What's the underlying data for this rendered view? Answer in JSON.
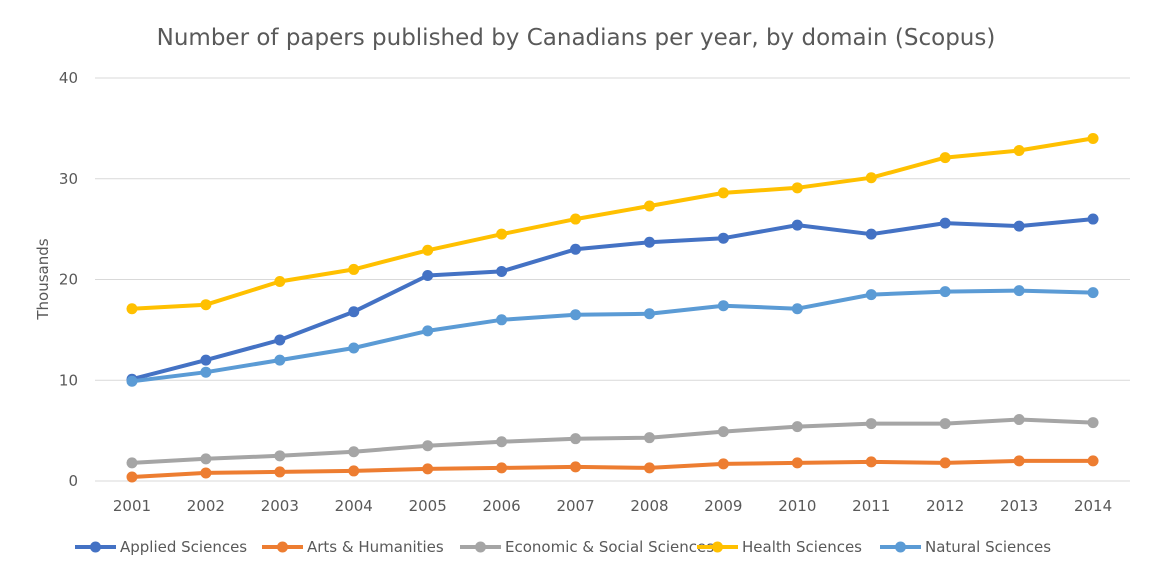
{
  "chart_data": {
    "type": "line",
    "title": "Number of papers published by Canadians per year, by domain (Scopus)",
    "xlabel": "",
    "ylabel": "Thousands",
    "ylim": [
      0,
      40
    ],
    "yticks": [
      "0",
      "10",
      "20",
      "30",
      "40"
    ],
    "ytick_values": [
      0,
      10,
      20,
      30,
      40
    ],
    "grid": true,
    "legend_position": "bottom",
    "categories": [
      "2001",
      "2002",
      "2003",
      "2004",
      "2005",
      "2006",
      "2007",
      "2008",
      "2009",
      "2010",
      "2011",
      "2012",
      "2013",
      "2014"
    ],
    "series": [
      {
        "name": "Applied Sciences",
        "color": "#4472C4",
        "values": [
          10.1,
          12.0,
          14.0,
          16.8,
          20.4,
          20.8,
          23.0,
          23.7,
          24.1,
          25.4,
          24.5,
          25.6,
          25.3,
          26.0
        ]
      },
      {
        "name": "Arts & Humanities",
        "color": "#ED7D31",
        "values": [
          0.4,
          0.8,
          0.9,
          1.0,
          1.2,
          1.3,
          1.4,
          1.3,
          1.7,
          1.8,
          1.9,
          1.8,
          2.0,
          2.0
        ]
      },
      {
        "name": "Economic & Social Sciences",
        "color": "#A5A5A5",
        "values": [
          1.8,
          2.2,
          2.5,
          2.9,
          3.5,
          3.9,
          4.2,
          4.3,
          4.9,
          5.4,
          5.7,
          5.7,
          6.1,
          5.8
        ]
      },
      {
        "name": "Health Sciences",
        "color": "#FFC000",
        "values": [
          17.1,
          17.5,
          19.8,
          21.0,
          22.9,
          24.5,
          26.0,
          27.3,
          28.6,
          29.1,
          30.1,
          32.1,
          32.8,
          34.0
        ]
      },
      {
        "name": "Natural Sciences",
        "color": "#5B9BD5",
        "values": [
          9.9,
          10.8,
          12.0,
          13.2,
          14.9,
          16.0,
          16.5,
          16.6,
          17.4,
          17.1,
          18.5,
          18.8,
          18.9,
          18.7
        ]
      }
    ]
  }
}
